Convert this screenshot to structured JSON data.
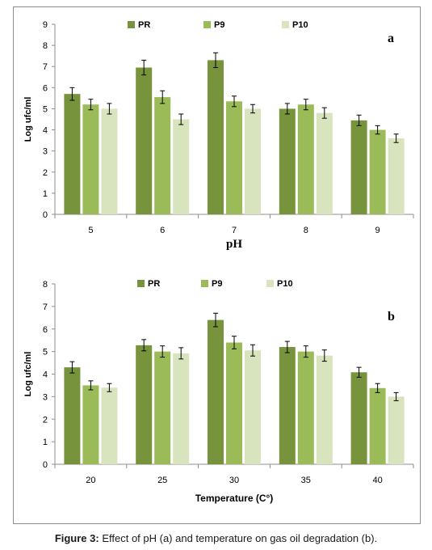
{
  "chart_data": [
    {
      "type": "bar",
      "panel_label": "a",
      "xlabel": "pH",
      "ylabel": "Log ufc/ml",
      "categories": [
        "5",
        "6",
        "7",
        "8",
        "9"
      ],
      "ylim": [
        0,
        9
      ],
      "yticks": [
        0,
        1,
        2,
        3,
        4,
        5,
        6,
        7,
        8,
        9
      ],
      "grid": false,
      "legend_position": "top-center",
      "error_bars": true,
      "series": [
        {
          "name": "PR",
          "color": "#77933c",
          "values": [
            5.7,
            6.95,
            7.3,
            5.0,
            4.45
          ],
          "errors": [
            0.3,
            0.35,
            0.35,
            0.25,
            0.25
          ]
        },
        {
          "name": "P9",
          "color": "#9bbb59",
          "values": [
            5.2,
            5.55,
            5.35,
            5.2,
            4.0
          ],
          "errors": [
            0.25,
            0.3,
            0.25,
            0.25,
            0.2
          ]
        },
        {
          "name": "P10",
          "color": "#d7e4bd",
          "values": [
            5.0,
            4.5,
            5.0,
            4.8,
            3.6
          ],
          "errors": [
            0.25,
            0.25,
            0.2,
            0.25,
            0.2
          ]
        }
      ]
    },
    {
      "type": "bar",
      "panel_label": "b",
      "xlabel": "Temperature (C°)",
      "ylabel": "Log ufc/ml",
      "categories": [
        "20",
        "25",
        "30",
        "35",
        "40"
      ],
      "ylim": [
        0,
        8
      ],
      "yticks": [
        0,
        1,
        2,
        3,
        4,
        5,
        6,
        7,
        8
      ],
      "grid": false,
      "legend_position": "top-center",
      "error_bars": true,
      "series": [
        {
          "name": "PR",
          "color": "#77933c",
          "values": [
            4.3,
            5.28,
            6.4,
            5.2,
            4.08
          ],
          "errors": [
            0.25,
            0.25,
            0.3,
            0.25,
            0.22
          ]
        },
        {
          "name": "P9",
          "color": "#9bbb59",
          "values": [
            3.5,
            5.0,
            5.4,
            5.0,
            3.38
          ],
          "errors": [
            0.2,
            0.25,
            0.28,
            0.25,
            0.2
          ]
        },
        {
          "name": "P10",
          "color": "#d7e4bd",
          "values": [
            3.4,
            4.92,
            5.05,
            4.82,
            3.0
          ],
          "errors": [
            0.18,
            0.25,
            0.25,
            0.25,
            0.18
          ]
        }
      ]
    }
  ],
  "caption": {
    "label": "Figure 3:",
    "text": " Effect of pH (a) and temperature on gas oil degradation (b)."
  }
}
